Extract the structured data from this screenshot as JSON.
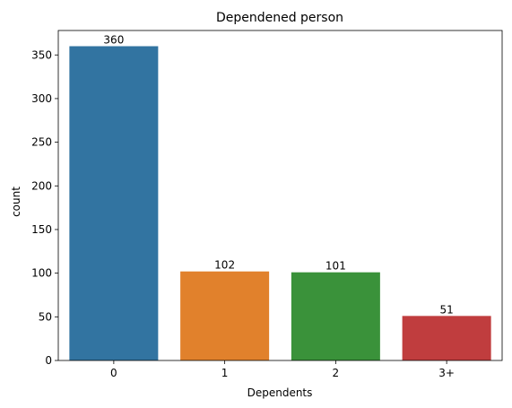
{
  "chart_data": {
    "type": "bar",
    "title": "Dependened person",
    "xlabel": "Dependents",
    "ylabel": "count",
    "categories": [
      "0",
      "1",
      "2",
      "3+"
    ],
    "values": [
      360,
      102,
      101,
      51
    ],
    "bar_labels": [
      "360",
      "102",
      "101",
      "51"
    ],
    "colors": [
      "#3274a1",
      "#e1812c",
      "#3a923a",
      "#c03d3e"
    ],
    "ylim": [
      0,
      378
    ],
    "yticks": [
      0,
      50,
      100,
      150,
      200,
      250,
      300,
      350
    ],
    "ytick_labels": [
      "0",
      "50",
      "100",
      "150",
      "200",
      "250",
      "300",
      "350"
    ],
    "grid": false,
    "legend": "none"
  }
}
